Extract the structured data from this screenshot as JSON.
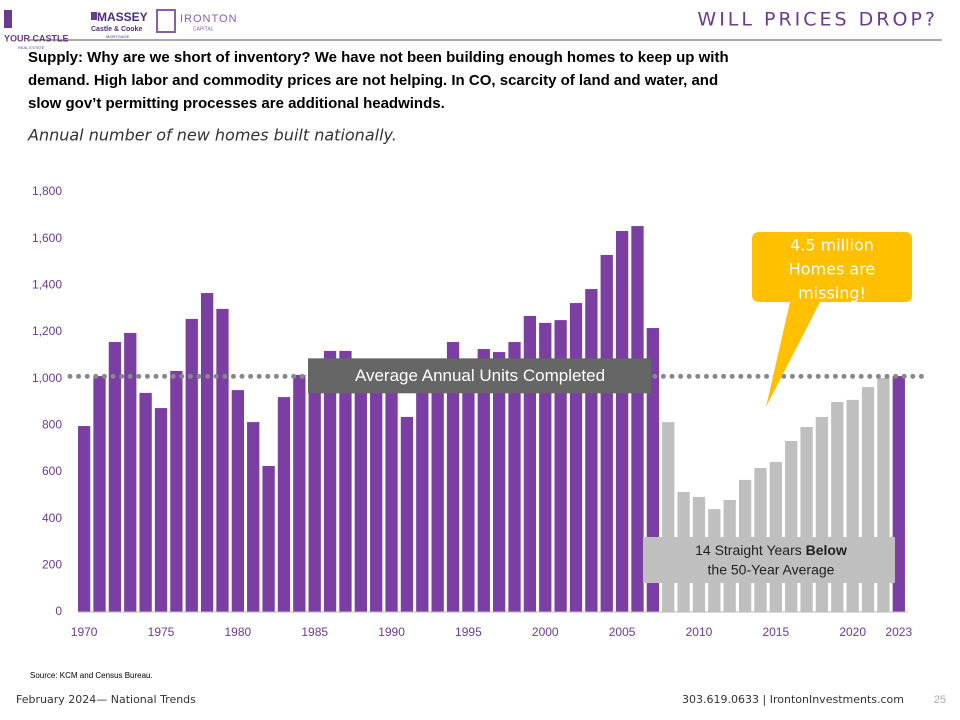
{
  "header": {
    "title": "WILL PRICES DROP?",
    "logos": [
      "YOUR CASTLE",
      "REAL ESTATE",
      "MASSEY",
      "Castle & Cooke",
      "MORTGAGE",
      "IRONTON",
      "CAPITAL"
    ]
  },
  "body": {
    "lines": [
      "Supply:  Why are we short  of inventory?  We have not been building enough homes to keep up with",
      "demand.  High labor  and  commodity  prices are not helping.  In CO, scarcity of land and water, and",
      "slow gov’t permitting  processes are additional  headwinds."
    ],
    "subtitle": "Annual number of new homes built nationally."
  },
  "chart_data": {
    "type": "bar",
    "x": [
      1970,
      1971,
      1972,
      1973,
      1974,
      1975,
      1976,
      1977,
      1978,
      1979,
      1980,
      1981,
      1982,
      1983,
      1984,
      1985,
      1986,
      1987,
      1988,
      1989,
      1990,
      1991,
      1992,
      1993,
      1994,
      1995,
      1996,
      1997,
      1998,
      1999,
      2000,
      2001,
      2002,
      2003,
      2004,
      2005,
      2006,
      2007,
      2008,
      2009,
      2010,
      2011,
      2012,
      2013,
      2014,
      2015,
      2016,
      2017,
      2018,
      2019,
      2020,
      2021,
      2022,
      2023
    ],
    "values": [
      797,
      1011,
      1157,
      1196,
      939,
      874,
      1033,
      1256,
      1367,
      1299,
      951,
      814,
      626,
      921,
      1016,
      1071,
      1119,
      1119,
      1085,
      1020,
      960,
      836,
      960,
      1040,
      1157,
      1070,
      1127,
      1114,
      1157,
      1269,
      1239,
      1251,
      1324,
      1384,
      1530,
      1633,
      1654,
      1217,
      814,
      514,
      493,
      441,
      480,
      566,
      617,
      643,
      733,
      793,
      836,
      900,
      909,
      964,
      1003,
      1011
    ],
    "colors": [
      "#7b3fa3",
      "#7b3fa3",
      "#7b3fa3",
      "#7b3fa3",
      "#7b3fa3",
      "#7b3fa3",
      "#7b3fa3",
      "#7b3fa3",
      "#7b3fa3",
      "#7b3fa3",
      "#7b3fa3",
      "#7b3fa3",
      "#7b3fa3",
      "#7b3fa3",
      "#7b3fa3",
      "#7b3fa3",
      "#7b3fa3",
      "#7b3fa3",
      "#7b3fa3",
      "#7b3fa3",
      "#7b3fa3",
      "#7b3fa3",
      "#7b3fa3",
      "#7b3fa3",
      "#7b3fa3",
      "#7b3fa3",
      "#7b3fa3",
      "#7b3fa3",
      "#7b3fa3",
      "#7b3fa3",
      "#7b3fa3",
      "#7b3fa3",
      "#7b3fa3",
      "#7b3fa3",
      "#7b3fa3",
      "#7b3fa3",
      "#7b3fa3",
      "#7b3fa3",
      "#bfbfbf",
      "#bfbfbf",
      "#bfbfbf",
      "#bfbfbf",
      "#bfbfbf",
      "#bfbfbf",
      "#bfbfbf",
      "#bfbfbf",
      "#bfbfbf",
      "#bfbfbf",
      "#bfbfbf",
      "#bfbfbf",
      "#bfbfbf",
      "#bfbfbf",
      "#bfbfbf",
      "#7b3fa3"
    ],
    "xlim": [
      1969.6,
      2023.6
    ],
    "xticks": [
      1970,
      1975,
      1980,
      1985,
      1990,
      1995,
      2000,
      2005,
      2010,
      2015,
      2020,
      2023
    ],
    "ylim": [
      0,
      1800
    ],
    "yticks": [
      0,
      200,
      400,
      600,
      800,
      {
        "value": 1000,
        "label": "1,000"
      },
      {
        "value": 1200,
        "label": "1,200"
      },
      {
        "value": 1400,
        "label": "1,400"
      },
      {
        "value": 1600,
        "label": "1,600"
      },
      {
        "value": 1800,
        "label": "1,800"
      }
    ],
    "average": {
      "value": 1010,
      "label": "Average Annual Units Completed"
    },
    "callout": [
      "4.5 million",
      "Homes are",
      "missing!"
    ],
    "below_note": [
      "14 Straight Years ",
      "Below",
      "the 50-Year Average"
    ]
  },
  "footer": {
    "source": "Source: KCM and Census Bureau.",
    "left": "February 2024— National Trends",
    "right": "303.619.0633 | IrontonInvestments.com",
    "page": "25"
  }
}
